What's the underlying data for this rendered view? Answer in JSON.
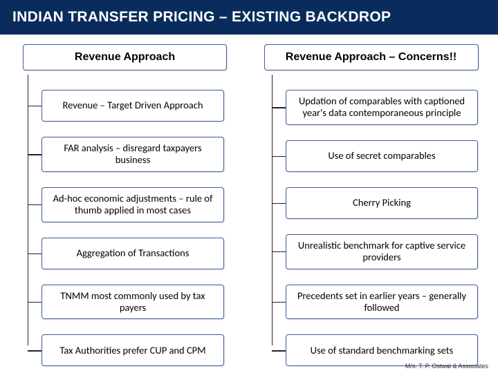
{
  "title": "INDIAN TRANSFER PRICING – EXISTING BACKDROP",
  "colors": {
    "title_bg": "#0a2c5c",
    "title_text": "#ffffff",
    "box_border": "#3a5d9a",
    "box_bg": "#ffffff",
    "connector": "#222222",
    "page_bg": "#ffffff"
  },
  "left": {
    "header": "Revenue Approach",
    "items": [
      "Revenue – Target Driven Approach",
      "FAR analysis – disregard taxpayers business",
      "Ad-hoc economic adjustments – rule of thumb applied in most cases",
      "Aggregation of Transactions",
      "TNMM most commonly used by tax payers",
      "Tax Authorities prefer CUP and CPM"
    ]
  },
  "right": {
    "header": "Revenue Approach – Concerns!!",
    "items": [
      "Updation of comparables with captioned year's data contemporaneous principle",
      "Use of secret comparables",
      "Cherry Picking",
      "Unrealistic benchmark for captive service providers",
      "Precedents set in earlier years – generally followed",
      "Use of standard benchmarking sets"
    ]
  },
  "footer": "M/s. T. P. Ostwal & Associates"
}
